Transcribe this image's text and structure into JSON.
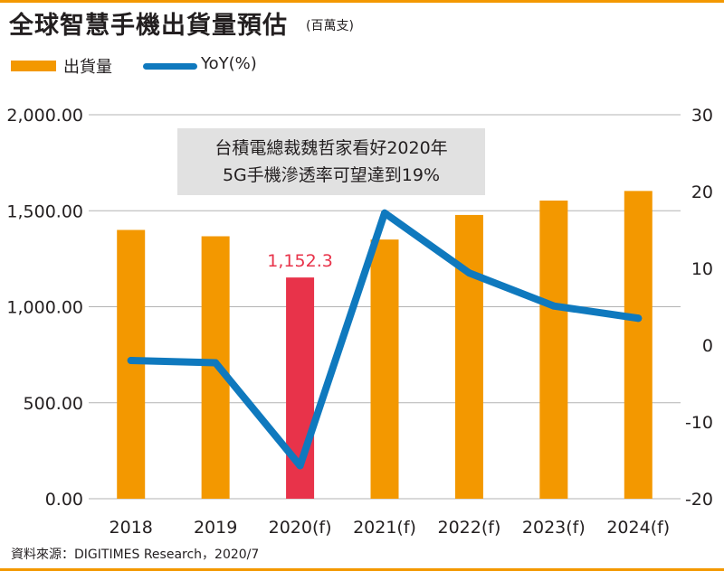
{
  "title": "全球智慧手機出貨量預估",
  "subtitle": "(百萬支)",
  "legend": {
    "bar_label": "出貨量",
    "line_label": "YoY(%)"
  },
  "note": {
    "line1": "台積電總裁魏哲家看好2020年",
    "line2": "5G手機滲透率可望達到19%"
  },
  "source": "資料來源：DIGITIMES Research，2020/7",
  "colors": {
    "bar": "#f39800",
    "highlight_bar": "#e8334a",
    "line": "#0f79be",
    "grid": "#b3b3b3",
    "frame": "#f39800"
  },
  "chart_data": {
    "type": "bar+line",
    "categories": [
      "2018",
      "2019",
      "2020(f)",
      "2021(f)",
      "2022(f)",
      "2023(f)",
      "2024(f)"
    ],
    "series": [
      {
        "name": "出貨量",
        "type": "bar",
        "axis": "left",
        "values": [
          1400,
          1367,
          1152.3,
          1350,
          1478,
          1553,
          1603
        ],
        "highlight_index": 2,
        "data_label": "1,152.3"
      },
      {
        "name": "YoY(%)",
        "type": "line",
        "axis": "right",
        "values": [
          -2.0,
          -2.3,
          -15.7,
          17.2,
          9.4,
          5.1,
          3.5
        ]
      }
    ],
    "y_left": {
      "min": 0,
      "max": 2000,
      "ticks": [
        0,
        500,
        1000,
        1500,
        2000
      ],
      "tick_labels": [
        "0.00",
        "500.00",
        "1,000.00",
        "1,500.00",
        "2,000.00"
      ]
    },
    "y_right": {
      "min": -20,
      "max": 30,
      "ticks": [
        -20,
        -10,
        0,
        10,
        20,
        30
      ],
      "tick_labels": [
        "-20",
        "-10",
        "0",
        "10",
        "20",
        "30"
      ]
    },
    "grid": true,
    "legend_position": "top-left"
  }
}
